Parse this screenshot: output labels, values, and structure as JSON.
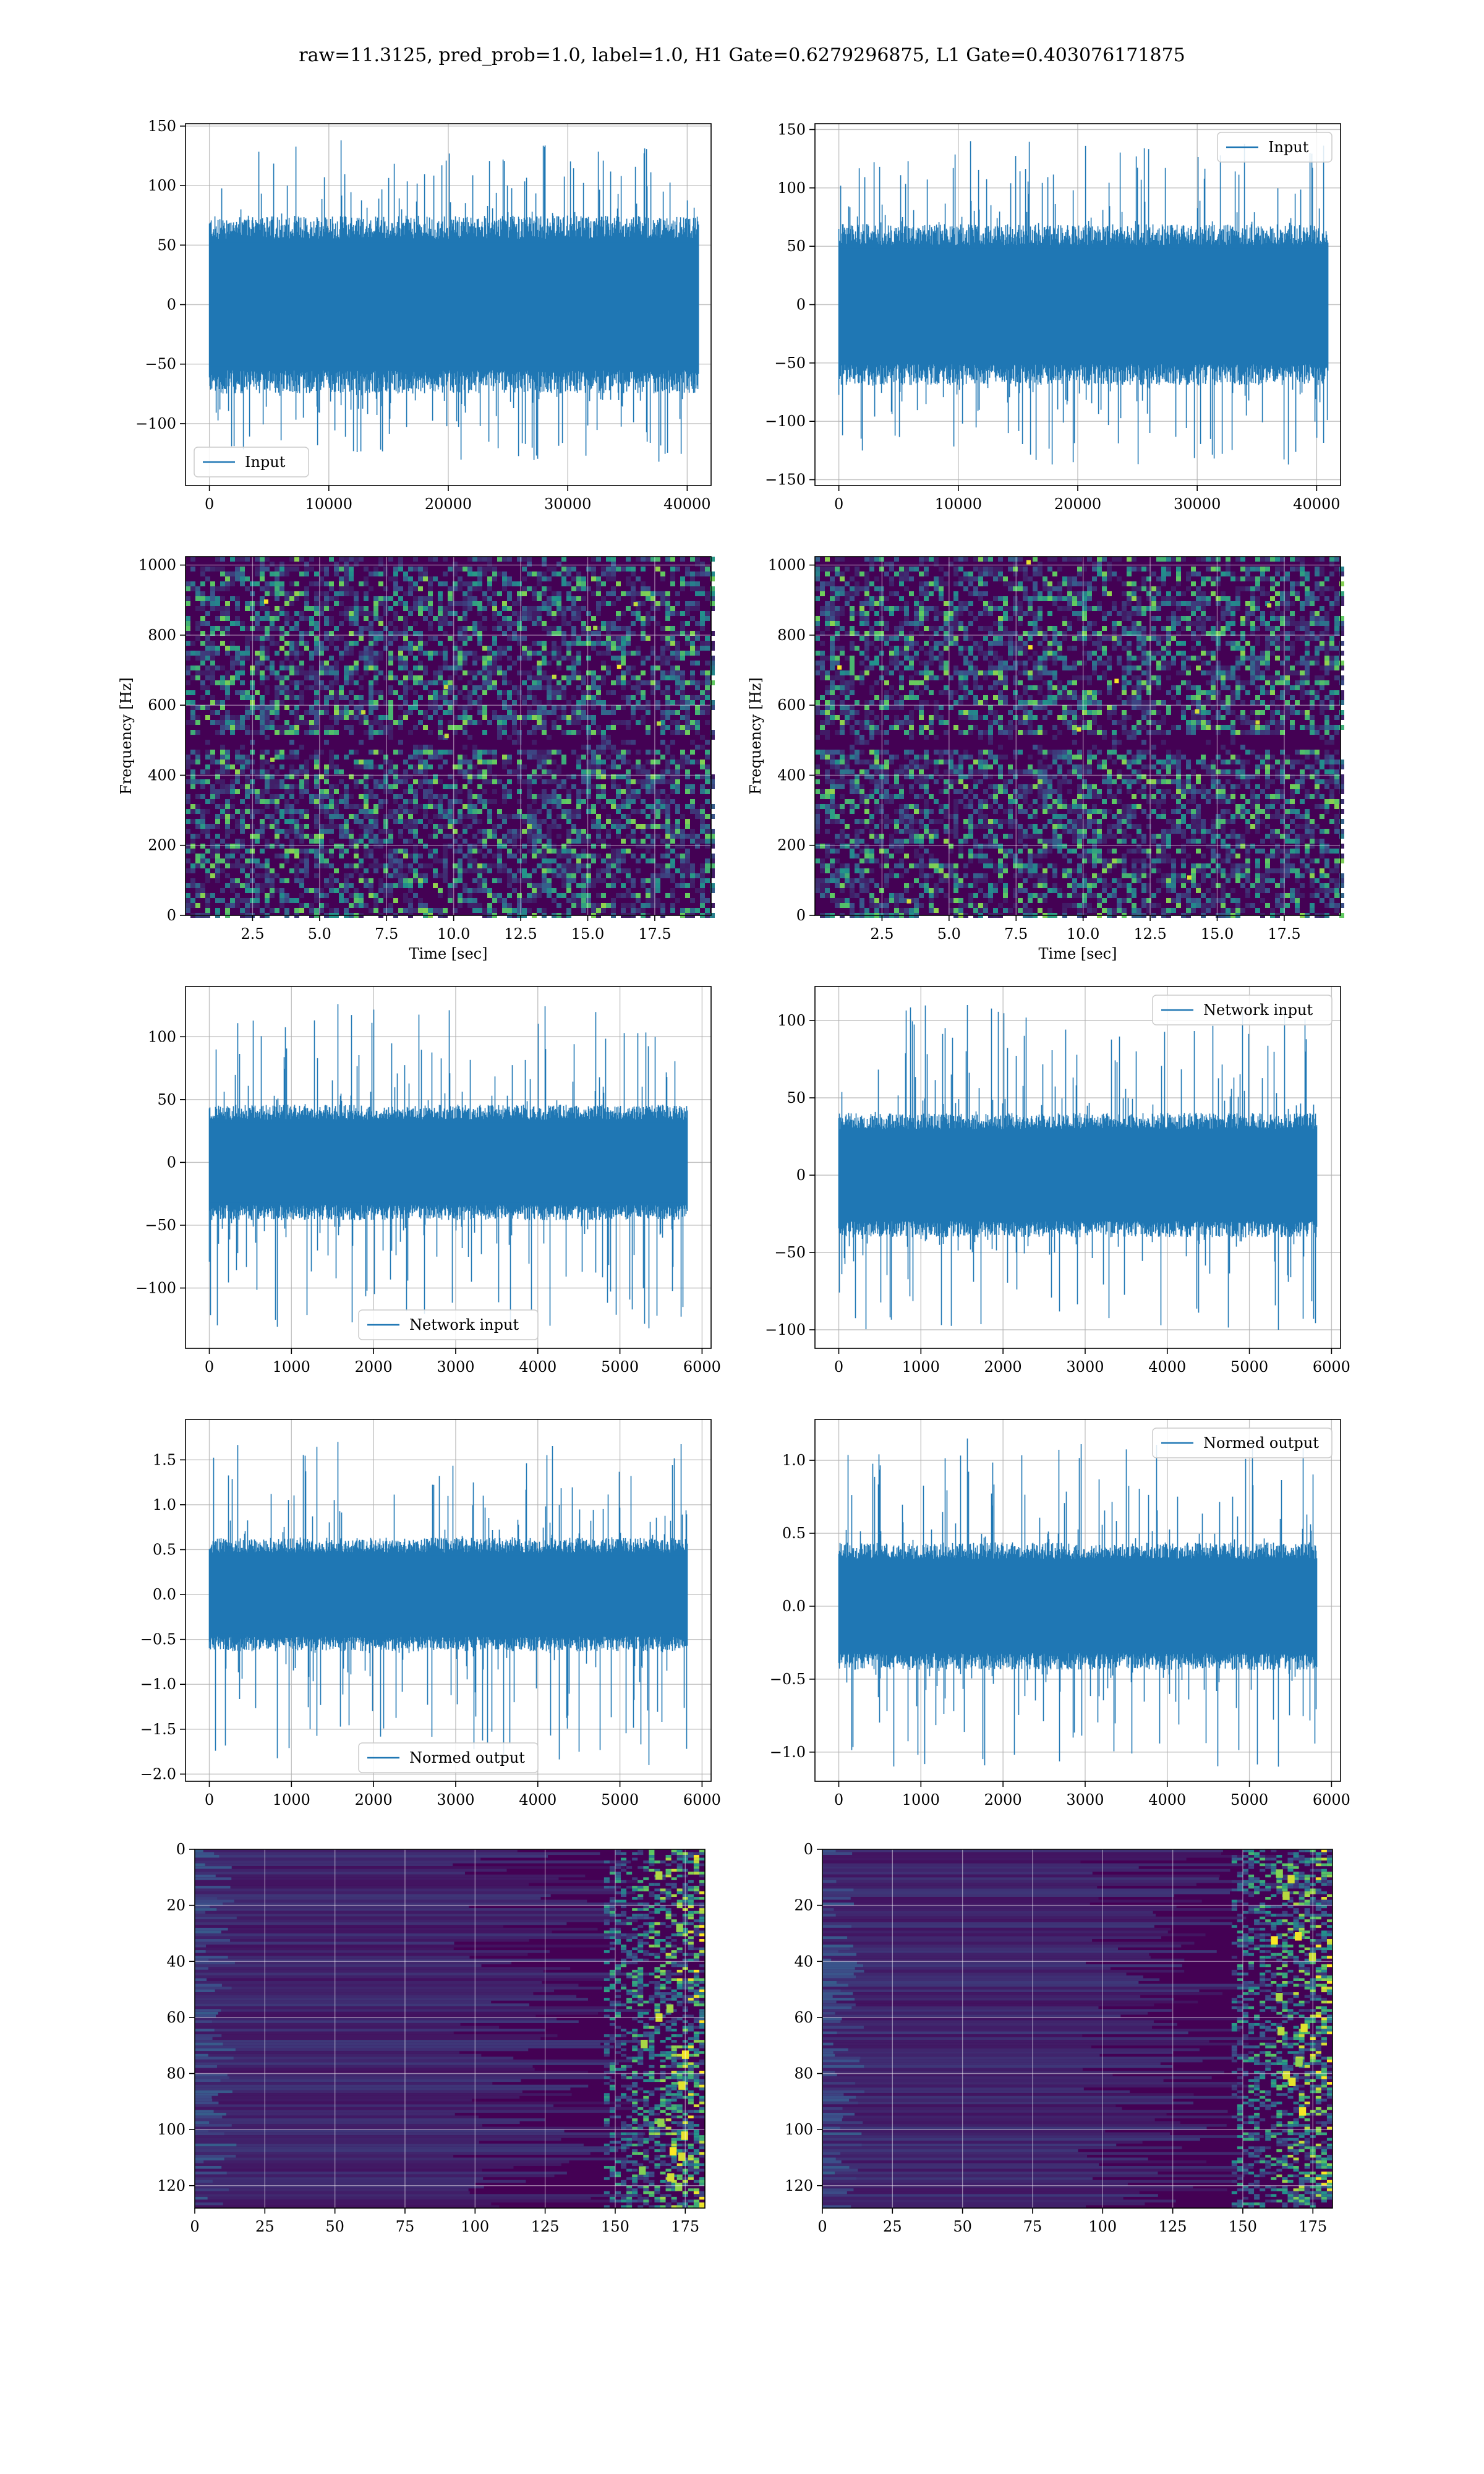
{
  "suptitle": "raw=11.3125, pred_prob=1.0, label=1.0, H1 Gate=0.6279296875, L1 Gate=0.403076171875",
  "colors": {
    "line": "#1f77b4",
    "grid": "#b0b0b0",
    "viridis_low": "#440154",
    "viridis_mid": "#21918c",
    "viridis_high": "#fde725"
  },
  "chart_data": [
    {
      "id": "r1c1",
      "type": "line",
      "title": "",
      "xlabel": "",
      "ylabel": "",
      "xlim": [
        -2000,
        42000
      ],
      "ylim": [
        -152,
        152
      ],
      "xticks": [
        0,
        10000,
        20000,
        30000,
        40000
      ],
      "yticks": [
        -100,
        -50,
        0,
        50,
        100,
        150
      ],
      "series": [
        {
          "name": "Input",
          "n": 40960,
          "core_amplitude": 65,
          "peak_max": 138,
          "peak_min": -132
        }
      ],
      "legend": "lower left",
      "grid": true
    },
    {
      "id": "r1c2",
      "type": "line",
      "title": "",
      "xlabel": "",
      "ylabel": "",
      "xlim": [
        -2000,
        42000
      ],
      "ylim": [
        -155,
        155
      ],
      "xticks": [
        0,
        10000,
        20000,
        30000,
        40000
      ],
      "yticks": [
        -150,
        -100,
        -50,
        0,
        50,
        100,
        150
      ],
      "series": [
        {
          "name": "Input",
          "n": 40960,
          "core_amplitude": 60,
          "peak_max": 140,
          "peak_min": -137
        }
      ],
      "legend": "upper right",
      "grid": true
    },
    {
      "id": "r2c1",
      "type": "heatmap",
      "title": "",
      "xlabel": "Time [sec]",
      "ylabel": "Frequency [Hz]",
      "xlim": [
        0,
        19.6
      ],
      "ylim": [
        0,
        1024
      ],
      "xticks": [
        2.5,
        5.0,
        7.5,
        10.0,
        12.5,
        15.0,
        17.5
      ],
      "yticks": [
        0,
        200,
        400,
        600,
        800,
        1000
      ],
      "colormap": "viridis",
      "grid": true
    },
    {
      "id": "r2c2",
      "type": "heatmap",
      "title": "",
      "xlabel": "Time [sec]",
      "ylabel": "Frequency [Hz]",
      "xlim": [
        0,
        19.6
      ],
      "ylim": [
        0,
        1024
      ],
      "xticks": [
        2.5,
        5.0,
        7.5,
        10.0,
        12.5,
        15.0,
        17.5
      ],
      "yticks": [
        0,
        200,
        400,
        600,
        800,
        1000
      ],
      "colormap": "viridis",
      "grid": true
    },
    {
      "id": "r3c1",
      "type": "line",
      "title": "",
      "xlabel": "",
      "ylabel": "",
      "xlim": [
        -290,
        6110
      ],
      "ylim": [
        -148,
        140
      ],
      "xticks": [
        0,
        1000,
        2000,
        3000,
        4000,
        5000,
        6000
      ],
      "yticks": [
        -100,
        -50,
        0,
        50,
        100
      ],
      "series": [
        {
          "name": "Network input",
          "n": 5820,
          "core_amplitude": 40,
          "peak_max": 126,
          "peak_min": -132
        }
      ],
      "legend": "lower center",
      "grid": true
    },
    {
      "id": "r3c2",
      "type": "line",
      "title": "",
      "xlabel": "",
      "ylabel": "",
      "xlim": [
        -290,
        6110
      ],
      "ylim": [
        -112,
        122
      ],
      "xticks": [
        0,
        1000,
        2000,
        3000,
        4000,
        5000,
        6000
      ],
      "yticks": [
        -100,
        -50,
        0,
        50,
        100
      ],
      "series": [
        {
          "name": "Network input",
          "n": 5820,
          "core_amplitude": 35,
          "peak_max": 110,
          "peak_min": -100
        }
      ],
      "legend": "upper right",
      "grid": true
    },
    {
      "id": "r4c1",
      "type": "line",
      "title": "",
      "xlabel": "",
      "ylabel": "",
      "xlim": [
        -290,
        6110
      ],
      "ylim": [
        -2.08,
        1.95
      ],
      "xticks": [
        0,
        1000,
        2000,
        3000,
        4000,
        5000,
        6000
      ],
      "yticks": [
        -2.0,
        -1.5,
        -1.0,
        -0.5,
        0.0,
        0.5,
        1.0,
        1.5
      ],
      "series": [
        {
          "name": "Normed output",
          "n": 5820,
          "core_amplitude": 0.55,
          "peak_max": 1.7,
          "peak_min": -1.9
        }
      ],
      "legend": "lower center",
      "grid": true
    },
    {
      "id": "r4c2",
      "type": "line",
      "title": "",
      "xlabel": "",
      "ylabel": "",
      "xlim": [
        -290,
        6110
      ],
      "ylim": [
        -1.2,
        1.28
      ],
      "xticks": [
        0,
        1000,
        2000,
        3000,
        4000,
        5000,
        6000
      ],
      "yticks": [
        -1.0,
        -0.5,
        0.0,
        0.5,
        1.0
      ],
      "series": [
        {
          "name": "Normed output",
          "n": 5820,
          "core_amplitude": 0.38,
          "peak_max": 1.15,
          "peak_min": -1.1
        }
      ],
      "legend": "upper right",
      "grid": true
    },
    {
      "id": "r5c1",
      "type": "heatmap",
      "title": "",
      "xlabel": "",
      "ylabel": "",
      "xlim": [
        0,
        182
      ],
      "ylim": [
        128,
        0
      ],
      "xticks": [
        0,
        25,
        50,
        75,
        100,
        125,
        150,
        175
      ],
      "yticks": [
        0,
        20,
        40,
        60,
        80,
        100,
        120
      ],
      "colormap": "viridis",
      "grid": true
    },
    {
      "id": "r5c2",
      "type": "heatmap",
      "title": "",
      "xlabel": "",
      "ylabel": "",
      "xlim": [
        0,
        182
      ],
      "ylim": [
        128,
        0
      ],
      "xticks": [
        0,
        25,
        50,
        75,
        100,
        125,
        150,
        175
      ],
      "yticks": [
        0,
        20,
        40,
        60,
        80,
        100,
        120
      ],
      "colormap": "viridis",
      "grid": true
    }
  ]
}
